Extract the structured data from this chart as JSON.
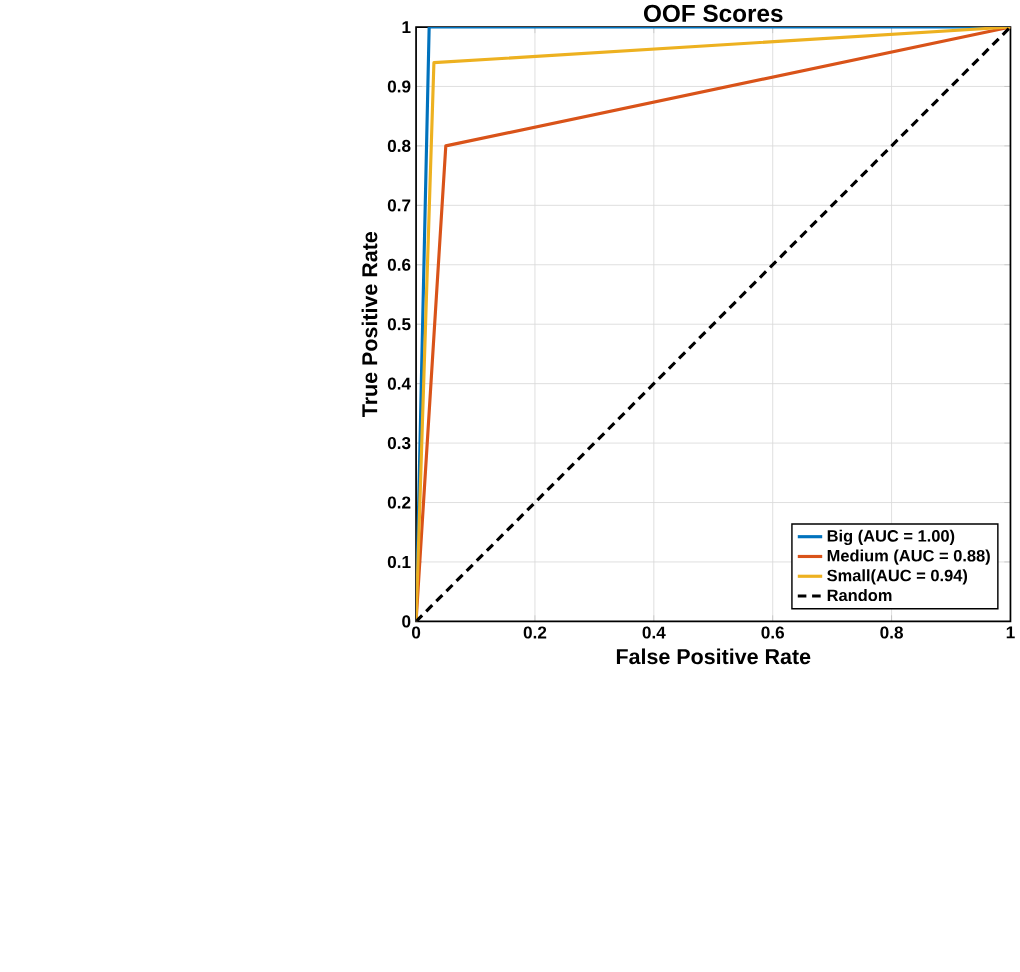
{
  "chart_data": {
    "type": "line",
    "title": "OOF Scores",
    "xlabel": "False Positive Rate",
    "ylabel": "True Positive Rate",
    "series": [
      {
        "name": "Big (AUC = 1.00)",
        "color": "#0072bd",
        "x": [
          0,
          0.022,
          1
        ],
        "values": [
          0,
          1,
          1
        ]
      },
      {
        "name": "Medium (AUC = 0.88)",
        "color": "#d95319",
        "x": [
          0,
          0.05,
          1
        ],
        "values": [
          0,
          0.8,
          1
        ]
      },
      {
        "name": "Small(AUC = 0.94)",
        "color": "#edb120",
        "x": [
          0,
          0.03,
          1
        ],
        "values": [
          0,
          0.94,
          1
        ]
      },
      {
        "name": "Random",
        "color": "#000000",
        "line_style": "dashed",
        "x": [
          0,
          1
        ],
        "values": [
          0,
          1
        ]
      }
    ],
    "xlim": [
      0,
      1
    ],
    "ylim": [
      0,
      1
    ],
    "xticks": [
      0,
      0.2,
      0.4,
      0.6,
      0.8,
      1
    ],
    "yticks": [
      0,
      0.1,
      0.2,
      0.3,
      0.4,
      0.5,
      0.6,
      0.7,
      0.8,
      0.9,
      1
    ],
    "grid": true,
    "legend": "bottom right",
    "line_style": "solid",
    "marker": "none"
  }
}
